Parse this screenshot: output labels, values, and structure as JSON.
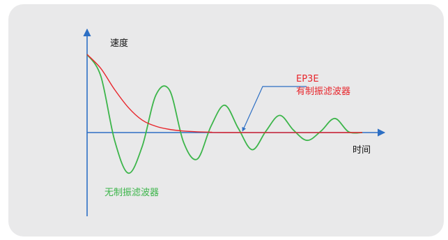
{
  "chart_data": {
    "type": "line",
    "title": "",
    "xlabel": "时间",
    "ylabel": "速度",
    "grid": false,
    "series": [
      {
        "name": "无制振滤波器",
        "color": "#3cb54a",
        "x": [
          0,
          0.05,
          0.1,
          0.15,
          0.2,
          0.25,
          0.3,
          0.35,
          0.4,
          0.45,
          0.5,
          0.55,
          0.6,
          0.65,
          0.7,
          0.75,
          0.8,
          0.85,
          0.9,
          0.95,
          1.0
        ],
        "values": [
          1.0,
          0.72,
          -0.1,
          -0.52,
          -0.18,
          0.48,
          0.54,
          -0.12,
          -0.34,
          0.08,
          0.35,
          0.05,
          -0.22,
          0.02,
          0.22,
          0.03,
          -0.1,
          0.02,
          0.18,
          0.01,
          0.0
        ]
      },
      {
        "name": "EP3E 有制振滤波器",
        "color": "#e8252b",
        "x": [
          0,
          0.05,
          0.1,
          0.15,
          0.2,
          0.25,
          0.3,
          0.35,
          0.4,
          0.45,
          0.5,
          1.0
        ],
        "values": [
          1.0,
          0.82,
          0.55,
          0.32,
          0.16,
          0.08,
          0.04,
          0.02,
          0.01,
          0.005,
          0.0,
          0.0
        ]
      }
    ],
    "annotations": [
      {
        "text_line1": "EP3E",
        "text_line2": "有制振滤波器",
        "color": "#e8252b",
        "target": "red-curve"
      },
      {
        "text": "无制振滤波器",
        "color": "#3cb54a",
        "target": "green-curve"
      }
    ]
  },
  "colors": {
    "axis": "#2d6fc4",
    "card_bg": "#e9e9ea"
  }
}
